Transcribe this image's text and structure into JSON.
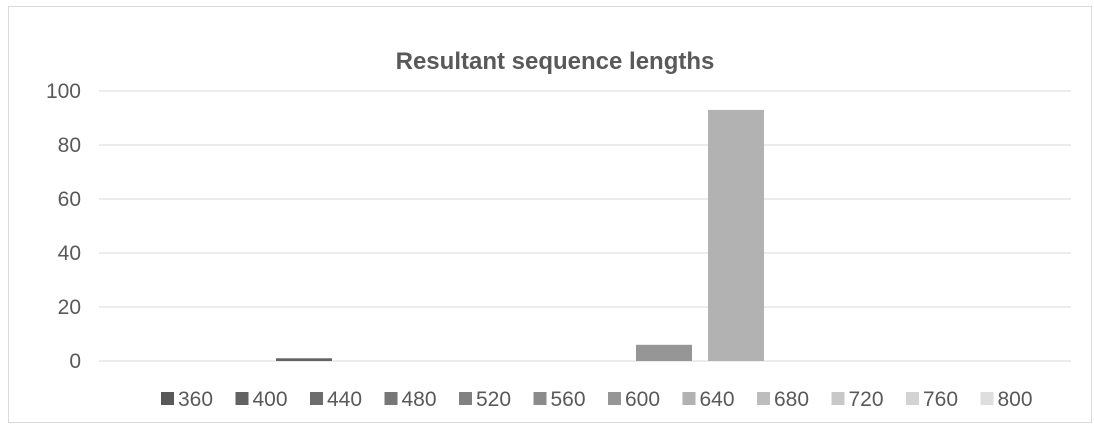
{
  "chart_data": {
    "type": "bar",
    "title": "Resultant sequence lengths",
    "xlabel": "",
    "ylabel": "",
    "ylim": [
      0,
      100
    ],
    "yticks": [
      0,
      20,
      40,
      60,
      80,
      100
    ],
    "grid": true,
    "legend_position": "bottom",
    "series": [
      {
        "name": "360",
        "value": 0,
        "color": "#595959"
      },
      {
        "name": "400",
        "value": 1,
        "color": "#636363"
      },
      {
        "name": "440",
        "value": 0,
        "color": "#6d6d6d"
      },
      {
        "name": "480",
        "value": 0,
        "color": "#777777"
      },
      {
        "name": "520",
        "value": 0,
        "color": "#818181"
      },
      {
        "name": "560",
        "value": 0,
        "color": "#8b8b8b"
      },
      {
        "name": "600",
        "value": 6,
        "color": "#969696"
      },
      {
        "name": "640",
        "value": 93,
        "color": "#b2b2b2"
      },
      {
        "name": "680",
        "value": 0,
        "color": "#bdbdbd"
      },
      {
        "name": "720",
        "value": 0,
        "color": "#c8c8c8"
      },
      {
        "name": "760",
        "value": 0,
        "color": "#d3d3d3"
      },
      {
        "name": "800",
        "value": 0,
        "color": "#dedede"
      }
    ]
  }
}
